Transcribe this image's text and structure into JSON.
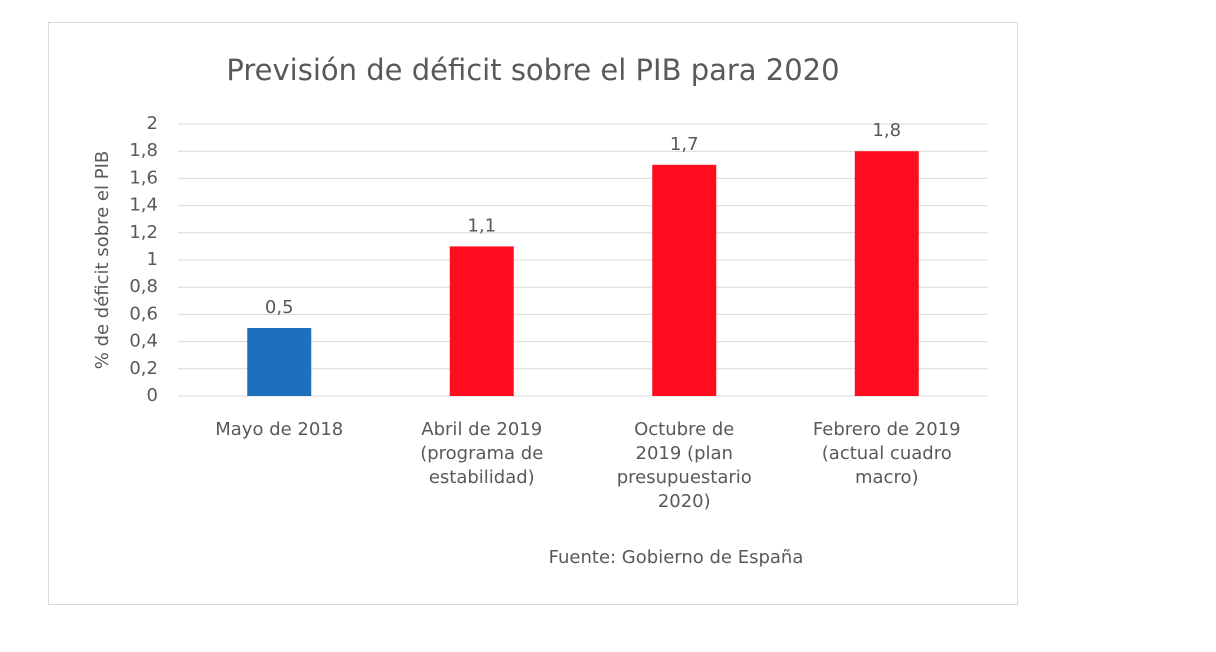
{
  "chart_data": {
    "type": "bar",
    "title": "Previsión de déficit sobre el PIB para 2020",
    "y_label": "% de déficit sobre el PIB",
    "source": "Fuente: Gobierno de España",
    "categories": [
      "Mayo de 2018",
      "Abril de 2019 (programa de estabilidad)",
      "Octubre de 2019 (plan presupuestario 2020)",
      "Febrero de 2019 (actual cuadro macro)"
    ],
    "values": [
      0.5,
      1.1,
      1.7,
      1.8
    ],
    "value_labels": [
      "0,5",
      "1,1",
      "1,7",
      "1,8"
    ],
    "colors": [
      "#1f6fbf",
      "#ff0d1f",
      "#ff0d1f",
      "#ff0d1f"
    ],
    "ylim": [
      0,
      2
    ],
    "yticks": [
      0,
      {
        "value": 0.2,
        "label": "0,2"
      },
      {
        "value": 0.4,
        "label": "0,4"
      },
      {
        "value": 0.6,
        "label": "0,6"
      },
      {
        "value": 0.8,
        "label": "0,8"
      },
      1,
      {
        "value": 1.2,
        "label": "1,2"
      },
      {
        "value": 1.4,
        "label": "1,4"
      },
      {
        "value": 1.6,
        "label": "1,6"
      },
      {
        "value": 1.8,
        "label": "1,8"
      },
      2
    ],
    "grid": true
  }
}
